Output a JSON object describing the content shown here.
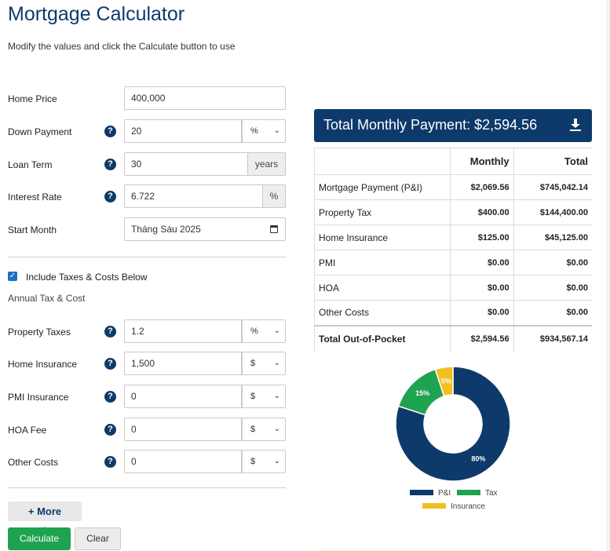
{
  "header": {
    "title": "Mortgage Calculator",
    "subtitle": "Modify the values and click the Calculate button to use"
  },
  "form": {
    "home_price": {
      "label": "Home Price",
      "value": "400,000"
    },
    "down_payment": {
      "label": "Down Payment",
      "value": "20",
      "unit": "%"
    },
    "loan_term": {
      "label": "Loan Term",
      "value": "30",
      "addon": "years"
    },
    "interest_rate": {
      "label": "Interest Rate",
      "value": "6.722",
      "addon": "%"
    },
    "start_month": {
      "label": "Start Month",
      "value": "Tháng Sáu 2025"
    },
    "include_taxes": {
      "label": "Include Taxes & Costs Below",
      "checked": true
    },
    "section_label": "Annual Tax & Cost",
    "property_taxes": {
      "label": "Property Taxes",
      "value": "1.2",
      "unit": "%"
    },
    "home_insurance": {
      "label": "Home Insurance",
      "value": "1,500",
      "unit": "$"
    },
    "pmi_insurance": {
      "label": "PMI Insurance",
      "value": "0",
      "unit": "$"
    },
    "hoa_fee": {
      "label": "HOA Fee",
      "value": "0",
      "unit": "$"
    },
    "other_costs": {
      "label": "Other Costs",
      "value": "0",
      "unit": "$"
    },
    "help_glyph": "?",
    "more_options": "+ More Options",
    "calculate": "Calculate",
    "clear": "Clear"
  },
  "results": {
    "banner": "Total Monthly Payment: $2,594.56",
    "columns": [
      "",
      "Monthly",
      "Total"
    ],
    "rows": [
      {
        "name": "Mortgage Payment (P&I)",
        "monthly": "$2,069.56",
        "total": "$745,042.14"
      },
      {
        "name": "Property Tax",
        "monthly": "$400.00",
        "total": "$144,400.00"
      },
      {
        "name": "Home Insurance",
        "monthly": "$125.00",
        "total": "$45,125.00"
      },
      {
        "name": "PMI",
        "monthly": "$0.00",
        "total": "$0.00"
      },
      {
        "name": "HOA",
        "monthly": "$0.00",
        "total": "$0.00"
      },
      {
        "name": "Other Costs",
        "monthly": "$0.00",
        "total": "$0.00"
      }
    ],
    "total_row": {
      "name": "Total Out-of-Pocket",
      "monthly": "$2,594.56",
      "total": "$934,567.14"
    }
  },
  "chart_data": {
    "type": "pie",
    "categories": [
      "P&I",
      "Tax",
      "Insurance"
    ],
    "values": [
      80,
      15,
      5
    ],
    "labels": [
      "80%",
      "15%",
      "5%"
    ],
    "colors": [
      "#0d3a6a",
      "#1ea350",
      "#f2c01e"
    ],
    "legend": "bottom"
  },
  "icons": {
    "help": "help-circle-icon",
    "calendar": "calendar-icon",
    "download": "download-icon",
    "checkbox": "checkbox-checked-icon"
  }
}
